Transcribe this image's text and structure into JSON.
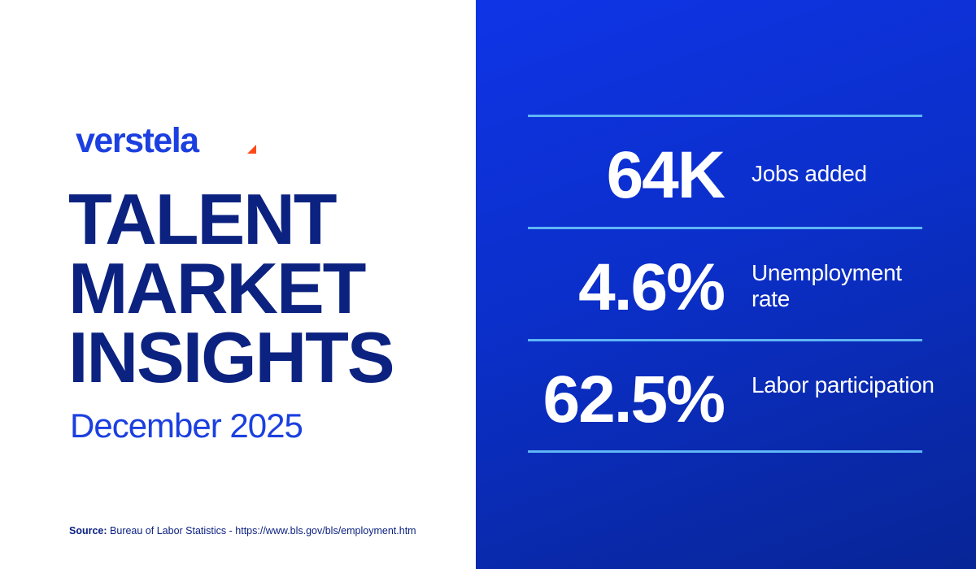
{
  "brand": {
    "name": "verstela",
    "primary_color": "#1b3fe0",
    "dark_color": "#0c2280",
    "accent_color": "#ff4a17"
  },
  "title": {
    "line1": "TALENT",
    "line2": "MARKET",
    "line3": "INSIGHTS"
  },
  "subtitle": "December 2025",
  "source": {
    "label": "Source:",
    "text": "Bureau of Labor Statistics - https://www.bls.gov/bls/employment.htm"
  },
  "stats": [
    {
      "value": "64K",
      "label": "Jobs added"
    },
    {
      "value": "4.6%",
      "label": "Unemployment rate"
    },
    {
      "value": "62.5%",
      "label": "Labor participation"
    }
  ],
  "panel": {
    "background_color": "#0b2fc9",
    "rule_color": "#5fb5f5"
  }
}
